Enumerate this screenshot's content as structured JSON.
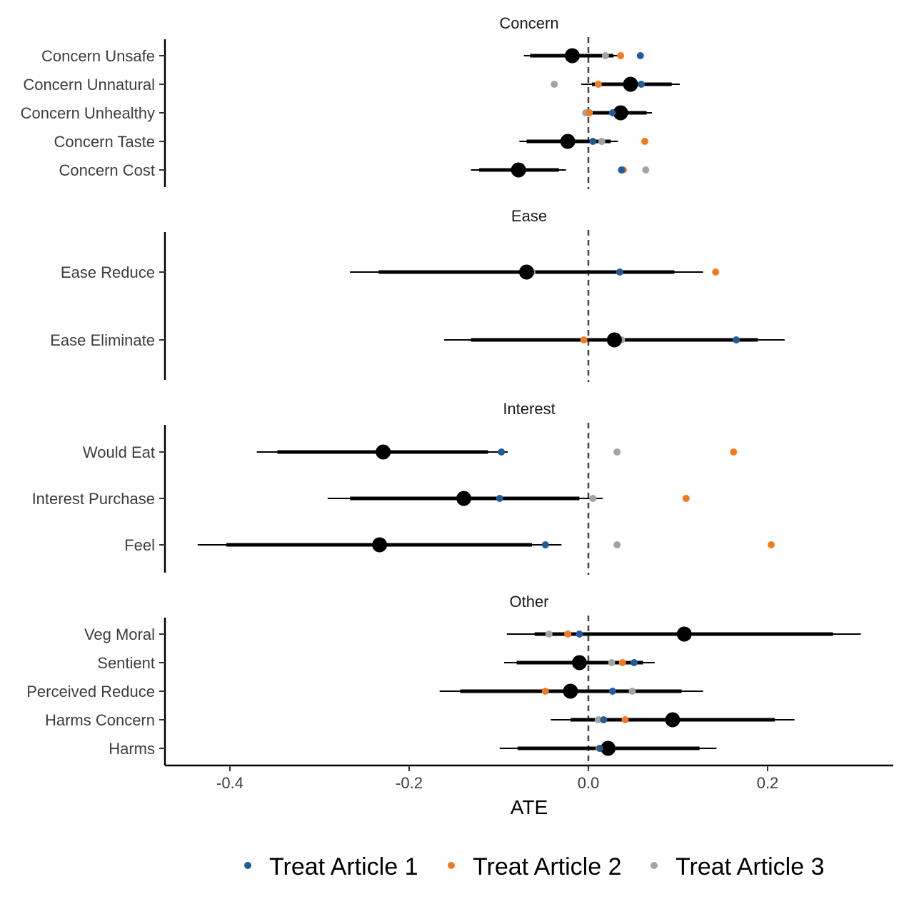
{
  "chart_data": {
    "type": "scatter",
    "xlabel": "ATE",
    "xticks": [
      -0.4,
      -0.2,
      0.0,
      0.2
    ],
    "xtick_labels": [
      "-0.4",
      "-0.2",
      "0.0",
      "0.2"
    ],
    "xlim": [
      -0.47,
      0.34
    ],
    "reference_line": 0.0,
    "legend": {
      "position": "bottom",
      "entries": [
        {
          "name": "Treat Article 1",
          "color": "#1f5c99"
        },
        {
          "name": "Treat Article 2",
          "color": "#f47a20"
        },
        {
          "name": "Treat Article 3",
          "color": "#a3a3a3"
        }
      ]
    },
    "panels": [
      {
        "title": "Concern",
        "rows": [
          {
            "label": "Concern Unsafe",
            "estimate": -0.018,
            "ci90": [
              -0.065,
              0.028
            ],
            "ci95": [
              -0.072,
              0.035
            ],
            "article1": 0.058,
            "article2": 0.036,
            "article3": 0.019
          },
          {
            "label": "Concern Unnatural",
            "estimate": 0.047,
            "ci90": [
              0.004,
              0.093
            ],
            "ci95": [
              -0.008,
              0.102
            ],
            "article1": 0.059,
            "article2": 0.011,
            "article3": -0.038
          },
          {
            "label": "Concern Unhealthy",
            "estimate": 0.036,
            "ci90": [
              0.004,
              0.065
            ],
            "ci95": [
              -0.002,
              0.071
            ],
            "article1": 0.027,
            "article2": 0.001,
            "article3": -0.003
          },
          {
            "label": "Concern Taste",
            "estimate": -0.023,
            "ci90": [
              -0.069,
              0.025
            ],
            "ci95": [
              -0.077,
              0.033
            ],
            "article1": 0.005,
            "article2": 0.063,
            "article3": 0.015
          },
          {
            "label": "Concern Cost",
            "estimate": -0.078,
            "ci90": [
              -0.122,
              -0.033
            ],
            "ci95": [
              -0.131,
              -0.025
            ],
            "article1": 0.037,
            "article2": 0.039,
            "article3": 0.064
          }
        ]
      },
      {
        "title": "Ease",
        "rows": [
          {
            "label": "Ease Reduce",
            "estimate": -0.069,
            "ci90": [
              -0.234,
              0.096
            ],
            "ci95": [
              -0.266,
              0.128
            ],
            "article1": 0.035,
            "article2": 0.142,
            "article3": -0.063
          },
          {
            "label": "Ease Eliminate",
            "estimate": 0.029,
            "ci90": [
              -0.131,
              0.189
            ],
            "ci95": [
              -0.161,
              0.219
            ],
            "article1": 0.165,
            "article2": -0.005,
            "article3": 0.037
          }
        ]
      },
      {
        "title": "Interest",
        "rows": [
          {
            "label": "Would Eat",
            "estimate": -0.229,
            "ci90": [
              -0.347,
              -0.112
            ],
            "ci95": [
              -0.37,
              -0.09
            ],
            "article1": -0.097,
            "article2": 0.162,
            "article3": 0.032
          },
          {
            "label": "Interest Purchase",
            "estimate": -0.139,
            "ci90": [
              -0.266,
              -0.01
            ],
            "ci95": [
              -0.291,
              0.016
            ],
            "article1": -0.099,
            "article2": 0.109,
            "article3": 0.005
          },
          {
            "label": "Feel",
            "estimate": -0.233,
            "ci90": [
              -0.404,
              -0.063
            ],
            "ci95": [
              -0.436,
              -0.03
            ],
            "article1": -0.048,
            "article2": 0.204,
            "article3": 0.032
          }
        ]
      },
      {
        "title": "Other",
        "rows": [
          {
            "label": "Veg Moral",
            "estimate": 0.107,
            "ci90": [
              -0.06,
              0.273
            ],
            "ci95": [
              -0.091,
              0.304
            ],
            "article1": -0.01,
            "article2": -0.023,
            "article3": -0.044
          },
          {
            "label": "Sentient",
            "estimate": -0.01,
            "ci90": [
              -0.08,
              0.061
            ],
            "ci95": [
              -0.094,
              0.074
            ],
            "article1": 0.051,
            "article2": 0.038,
            "article3": 0.026
          },
          {
            "label": "Perceived Reduce",
            "estimate": -0.02,
            "ci90": [
              -0.143,
              0.104
            ],
            "ci95": [
              -0.166,
              0.128
            ],
            "article1": 0.027,
            "article2": -0.048,
            "article3": 0.049
          },
          {
            "label": "Harms Concern",
            "estimate": 0.094,
            "ci90": [
              -0.02,
              0.208
            ],
            "ci95": [
              -0.042,
              0.23
            ],
            "article1": 0.017,
            "article2": 0.041,
            "article3": 0.011
          },
          {
            "label": "Harms",
            "estimate": 0.022,
            "ci90": [
              -0.079,
              0.124
            ],
            "ci95": [
              -0.099,
              0.143
            ],
            "article1": 0.013,
            "article2": 0.012,
            "article3": 0.018
          }
        ]
      }
    ]
  }
}
